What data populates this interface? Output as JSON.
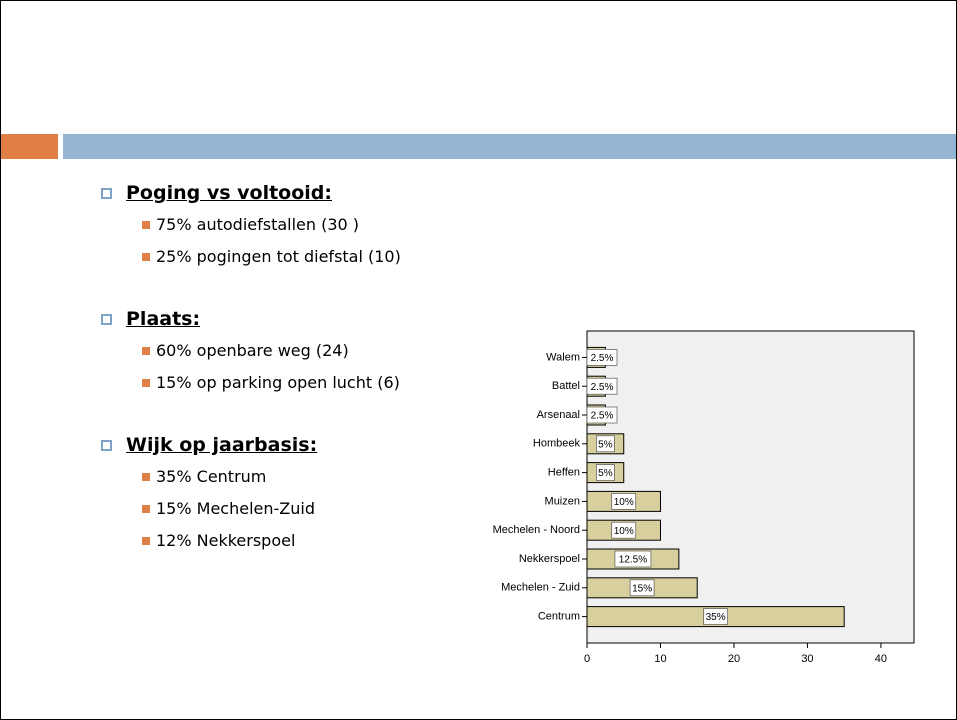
{
  "slide": {
    "sections": [
      {
        "heading": "Poging vs voltooid:",
        "items": [
          "75% autodiefstallen (30 )",
          "25% pogingen tot diefstal (10)"
        ]
      },
      {
        "heading": "Plaats:",
        "items": [
          "60% openbare weg (24)",
          "15% op parking open lucht (6)"
        ]
      },
      {
        "heading": "Wijk op jaarbasis:",
        "items": [
          "35% Centrum",
          "15% Mechelen-Zuid",
          "12% Nekkerspoel"
        ]
      }
    ]
  },
  "chart_data": {
    "type": "bar",
    "orientation": "horizontal",
    "categories": [
      "Walem",
      "Battel",
      "Arsenaal",
      "Hombeek",
      "Heffen",
      "Muizen",
      "Mechelen - Noord",
      "Nekkerspoel",
      "Mechelen - Zuid",
      "Centrum"
    ],
    "values": [
      2.5,
      2.5,
      2.5,
      5,
      5,
      10,
      10,
      12.5,
      15,
      35
    ],
    "value_labels": [
      "2.5%",
      "2.5%",
      "2.5%",
      "5%",
      "5%",
      "10%",
      "10%",
      "12.5%",
      "15%",
      "35%"
    ],
    "color": "#d8cf9e",
    "xlim": [
      0,
      44.5
    ],
    "xticks": [
      0,
      10,
      20,
      30,
      40
    ],
    "grid": false
  }
}
